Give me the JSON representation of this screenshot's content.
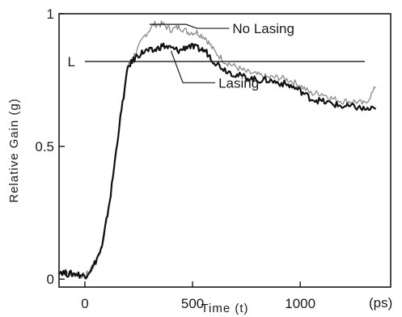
{
  "chart_data": {
    "type": "line",
    "title": "",
    "xlabel": "Time (t)",
    "ylabel": "Relative Gain (g)",
    "x_unit": "(ps)",
    "xlim": [
      -120,
      1420
    ],
    "ylim": [
      -0.03,
      1.0
    ],
    "xticks": [
      0,
      500,
      1000
    ],
    "xtick_labels": [
      "0",
      "500",
      "1000"
    ],
    "yticks": [
      0,
      0.5,
      1
    ],
    "ytick_labels": [
      "0",
      "0.5",
      "1"
    ],
    "grid": false,
    "legend": "none",
    "series": [
      {
        "name": "No Lasing",
        "color": "#8a8a8a",
        "x": [
          -120,
          -80,
          -40,
          0,
          40,
          80,
          120,
          160,
          200,
          240,
          280,
          320,
          360,
          400,
          440,
          480,
          520,
          560,
          600,
          650,
          700,
          750,
          800,
          850,
          900,
          950,
          1000,
          1050,
          1100,
          1150,
          1200,
          1250,
          1300,
          1350
        ],
        "y": [
          0.03,
          0.02,
          0.02,
          0.01,
          0.05,
          0.12,
          0.32,
          0.58,
          0.8,
          0.86,
          0.92,
          0.96,
          0.96,
          0.94,
          0.95,
          0.93,
          0.93,
          0.91,
          0.86,
          0.82,
          0.8,
          0.78,
          0.77,
          0.76,
          0.76,
          0.75,
          0.73,
          0.7,
          0.7,
          0.68,
          0.67,
          0.67,
          0.66,
          0.72
        ]
      },
      {
        "name": "Lasing",
        "color": "#111111",
        "x": [
          -120,
          -80,
          -40,
          0,
          40,
          80,
          120,
          160,
          200,
          240,
          280,
          320,
          360,
          400,
          440,
          480,
          520,
          560,
          600,
          650,
          700,
          750,
          800,
          850,
          900,
          950,
          1000,
          1050,
          1100,
          1150,
          1200,
          1250,
          1300,
          1350
        ],
        "y": [
          0.03,
          0.02,
          0.02,
          0.01,
          0.05,
          0.12,
          0.32,
          0.58,
          0.8,
          0.84,
          0.86,
          0.86,
          0.88,
          0.87,
          0.86,
          0.88,
          0.87,
          0.86,
          0.82,
          0.79,
          0.77,
          0.76,
          0.75,
          0.75,
          0.74,
          0.73,
          0.71,
          0.68,
          0.67,
          0.66,
          0.65,
          0.65,
          0.64,
          0.64
        ]
      }
    ],
    "reference_line": {
      "label": "L",
      "y": 0.82,
      "x_start": 0,
      "x_end": 1300
    },
    "annotations": [
      {
        "text": "No Lasing",
        "x": 460,
        "y": 0.97
      },
      {
        "text": "Lasing",
        "x": 430,
        "y": 0.74
      }
    ]
  }
}
